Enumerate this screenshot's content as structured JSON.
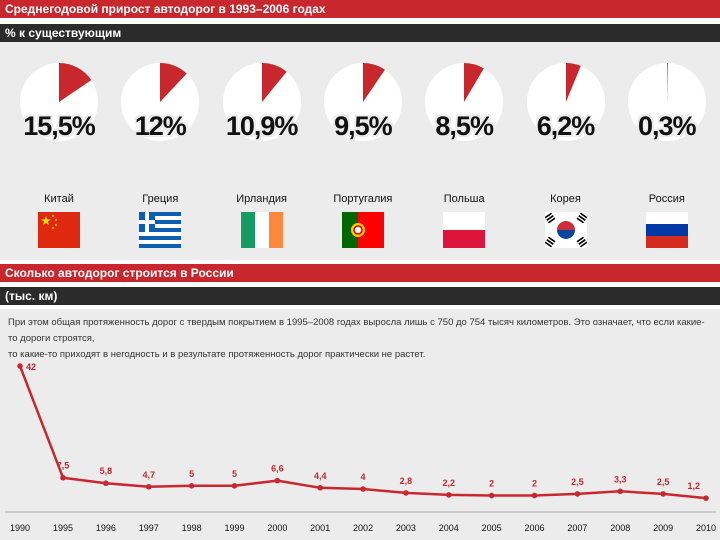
{
  "header": {
    "title": "Среднегодовой прирост автодорог в 1993–2006 годах",
    "subtitle": "% к существующим"
  },
  "growth": [
    {
      "country": "Китай",
      "label": "15,5%",
      "value": 15.5,
      "flag": "china"
    },
    {
      "country": "Греция",
      "label": "12%",
      "value": 12,
      "flag": "greece"
    },
    {
      "country": "Ирландия",
      "label": "10,9%",
      "value": 10.9,
      "flag": "ireland"
    },
    {
      "country": "Португалия",
      "label": "9,5%",
      "value": 9.5,
      "flag": "portugal"
    },
    {
      "country": "Польша",
      "label": "8,5%",
      "value": 8.5,
      "flag": "poland"
    },
    {
      "country": "Корея",
      "label": "6,2%",
      "value": 6.2,
      "flag": "korea"
    },
    {
      "country": "Россия",
      "label": "0,3%",
      "value": 0.3,
      "flag": "russia"
    }
  ],
  "section2": {
    "title": "Сколько автодорог строится в России",
    "unit": "(тыс. км)",
    "note_line1": "При этом общая протяженность дорог с твердым покрытием в 1995–2008 годах выросла лишь с 750 до 754 тысяч километров. Это означает, что если какие-то дороги строятся,",
    "note_line2": "то какие-то приходят в негодность и в результате протяженность дорог практически не растет."
  },
  "colors": {
    "accent": "#c8282d",
    "dark": "#2b2b2b",
    "panel": "#ececec"
  },
  "chart_data": [
    {
      "type": "pie",
      "categories": [
        "Китай",
        "Греция",
        "Ирландия",
        "Португалия",
        "Польша",
        "Корея",
        "Россия"
      ],
      "values": [
        15.5,
        12,
        10.9,
        9.5,
        8.5,
        6.2,
        0.3
      ],
      "title": "Среднегодовой прирост автодорог в 1993–2006 годах",
      "subtitle": "% к существующим"
    },
    {
      "type": "line",
      "title": "Сколько автодорог строится в России",
      "ylabel": "(тыс. км)",
      "x": [
        "1990",
        "1995",
        "1996",
        "1997",
        "1998",
        "1999",
        "2000",
        "2001",
        "2002",
        "2003",
        "2004",
        "2005",
        "2006",
        "2007",
        "2008",
        "2009",
        "2010"
      ],
      "values": [
        42,
        7.5,
        5.8,
        4.7,
        5,
        5,
        6.6,
        4.4,
        4,
        2.8,
        2.2,
        2,
        2,
        2.5,
        3.3,
        2.5,
        1.2
      ],
      "data_labels": [
        "42",
        "7,5",
        "5,8",
        "4,7",
        "5",
        "5",
        "6,6",
        "4,4",
        "4",
        "2,8",
        "2,2",
        "2",
        "2",
        "2,5",
        "3,3",
        "2,5",
        "1,2"
      ],
      "ylim": [
        0,
        42
      ],
      "grid": false
    }
  ]
}
